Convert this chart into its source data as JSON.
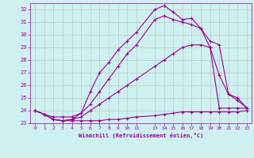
{
  "xlabel": "Windchill (Refroidissement éolien,°C)",
  "bg_color": "#cff0f0",
  "line_color": "#990099",
  "grid_color": "#aaccaa",
  "ylim": [
    23,
    32.5
  ],
  "xlim": [
    -0.5,
    23.5
  ],
  "yticks": [
    23,
    24,
    25,
    26,
    27,
    28,
    29,
    30,
    31,
    32
  ],
  "xticks": [
    0,
    1,
    2,
    3,
    4,
    5,
    6,
    7,
    8,
    9,
    10,
    11,
    13,
    14,
    15,
    16,
    17,
    18,
    19,
    20,
    21,
    22,
    23
  ],
  "series": [
    {
      "x": [
        0,
        1,
        2,
        3,
        4,
        5,
        6,
        7,
        8,
        9,
        10,
        11,
        13,
        14,
        15,
        16,
        17,
        18,
        19,
        20,
        21,
        22,
        23
      ],
      "y": [
        24.0,
        23.7,
        23.3,
        23.2,
        23.2,
        23.2,
        23.2,
        23.2,
        23.3,
        23.3,
        23.4,
        23.5,
        23.6,
        23.7,
        23.8,
        23.9,
        23.9,
        23.9,
        23.9,
        23.9,
        23.9,
        23.9,
        24.0
      ]
    },
    {
      "x": [
        0,
        1,
        2,
        3,
        4,
        5,
        6,
        7,
        8,
        9,
        10,
        11,
        13,
        14,
        15,
        16,
        17,
        18,
        19,
        20,
        21,
        22,
        23
      ],
      "y": [
        24.0,
        23.7,
        23.3,
        23.2,
        23.3,
        23.5,
        24.0,
        24.5,
        25.0,
        25.5,
        26.0,
        26.5,
        27.5,
        28.0,
        28.5,
        29.0,
        29.2,
        29.2,
        29.0,
        26.8,
        25.3,
        25.0,
        24.2
      ]
    },
    {
      "x": [
        0,
        1,
        2,
        3,
        4,
        5,
        6,
        7,
        8,
        9,
        10,
        11,
        13,
        14,
        15,
        16,
        17,
        18,
        19,
        20,
        21,
        22,
        23
      ],
      "y": [
        24.0,
        23.7,
        23.5,
        23.5,
        23.5,
        23.8,
        24.5,
        25.5,
        26.5,
        27.5,
        28.5,
        29.2,
        31.2,
        31.5,
        31.2,
        31.0,
        30.8,
        30.5,
        29.5,
        29.2,
        25.3,
        24.8,
        24.2
      ]
    },
    {
      "x": [
        0,
        1,
        2,
        3,
        4,
        5,
        6,
        7,
        8,
        9,
        10,
        11,
        13,
        14,
        15,
        16,
        17,
        18,
        19,
        20,
        21,
        22,
        23
      ],
      "y": [
        24.0,
        23.7,
        23.3,
        23.2,
        23.3,
        23.8,
        25.5,
        27.0,
        27.8,
        28.8,
        29.5,
        30.2,
        32.0,
        32.3,
        31.8,
        31.2,
        31.3,
        30.5,
        29.0,
        24.2,
        24.2,
        24.2,
        24.2
      ]
    }
  ]
}
